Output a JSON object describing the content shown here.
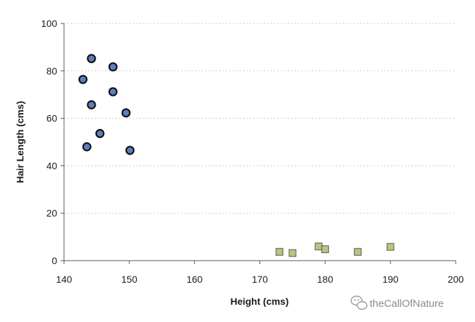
{
  "chart_data": {
    "type": "scatter",
    "title": "",
    "xlabel": "Height (cms)",
    "ylabel": "Hair Length (cms)",
    "xlim": [
      140,
      200
    ],
    "ylim": [
      0,
      100
    ],
    "xticks": [
      140,
      150,
      160,
      170,
      180,
      190,
      200
    ],
    "yticks": [
      0,
      20,
      40,
      60,
      80,
      100
    ],
    "grid": "horizontal dashed",
    "series": [
      {
        "marker": "circle",
        "color": "#5b7fbf",
        "points": [
          {
            "x": 144.2,
            "y": 85.2
          },
          {
            "x": 147.5,
            "y": 81.7
          },
          {
            "x": 142.9,
            "y": 76.4
          },
          {
            "x": 147.5,
            "y": 71.2
          },
          {
            "x": 144.2,
            "y": 65.7
          },
          {
            "x": 149.5,
            "y": 62.3
          },
          {
            "x": 145.5,
            "y": 53.6
          },
          {
            "x": 143.5,
            "y": 48.0
          },
          {
            "x": 150.1,
            "y": 46.5
          }
        ]
      },
      {
        "marker": "square",
        "color": "#b4c77e",
        "points": [
          {
            "x": 173.0,
            "y": 3.7
          },
          {
            "x": 175.0,
            "y": 3.2
          },
          {
            "x": 179.0,
            "y": 6.0
          },
          {
            "x": 180.0,
            "y": 4.8
          },
          {
            "x": 185.0,
            "y": 3.7
          },
          {
            "x": 190.0,
            "y": 5.8
          }
        ]
      }
    ]
  },
  "watermark": {
    "text": "theCallOfNature",
    "icon": "wechat-icon"
  }
}
